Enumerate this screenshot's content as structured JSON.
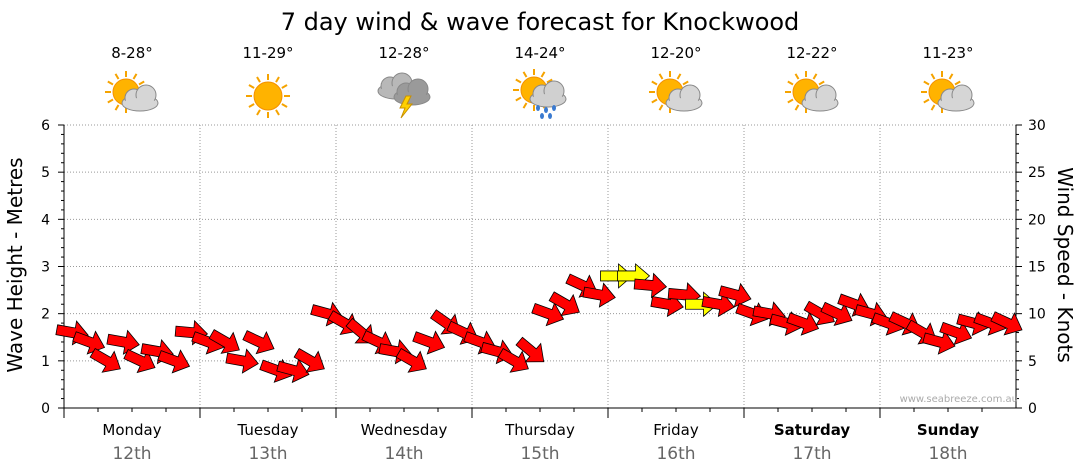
{
  "title": "7 day wind & wave forecast for Knockwood",
  "watermark": "www.seabreeze.com.au",
  "days": [
    {
      "name": "Monday",
      "date": "12th",
      "temp": "8-28°",
      "icon": "partly-cloudy-icon",
      "bold": false
    },
    {
      "name": "Tuesday",
      "date": "13th",
      "temp": "11-29°",
      "icon": "sunny-icon",
      "bold": false
    },
    {
      "name": "Wednesday",
      "date": "14th",
      "temp": "12-28°",
      "icon": "thunderstorm-icon",
      "bold": false
    },
    {
      "name": "Thursday",
      "date": "15th",
      "temp": "14-24°",
      "icon": "sun-showers-icon",
      "bold": false
    },
    {
      "name": "Friday",
      "date": "16th",
      "temp": "12-20°",
      "icon": "partly-cloudy-icon",
      "bold": false
    },
    {
      "name": "Saturday",
      "date": "17th",
      "temp": "12-22°",
      "icon": "partly-cloudy-icon",
      "bold": true
    },
    {
      "name": "Sunday",
      "date": "18th",
      "temp": "11-23°",
      "icon": "partly-cloudy-icon",
      "bold": true
    }
  ],
  "colors": {
    "strong_wind": "#ff0000",
    "moderate_wind": "#ffff00",
    "grid": "#999999"
  },
  "chart_data": {
    "type": "line",
    "title": "7 day wind & wave forecast for Knockwood",
    "ylabel_left": "Wave Height - Metres",
    "ylabel_right": "Wind Speed - Knots",
    "ylim_left": [
      0,
      6
    ],
    "ylim_right": [
      0,
      30
    ],
    "yticks_left": [
      "0",
      "1",
      "2",
      "3",
      "4",
      "5",
      "6"
    ],
    "yticks_right": [
      "0",
      "5",
      "10",
      "15",
      "20",
      "25",
      "30"
    ],
    "x_days": 7,
    "grid": true,
    "series": [
      {
        "axis": "right",
        "note": "wind speed in knots, 8 readings per day (3-hourly), arrows show direction",
        "values": [
          8,
          7,
          5,
          7,
          5,
          6,
          5,
          8,
          7,
          7,
          5,
          7,
          4,
          4,
          5,
          10,
          9,
          8,
          7,
          6,
          5,
          7,
          9,
          8,
          7,
          6,
          5,
          6,
          10,
          11,
          13,
          12,
          14,
          14,
          13,
          11,
          12,
          11,
          11,
          12,
          10,
          10,
          9,
          9,
          10,
          10,
          11,
          10,
          9,
          9,
          8,
          7,
          8,
          9,
          9,
          9
        ],
        "color_state": [
          "r",
          "r",
          "r",
          "r",
          "r",
          "r",
          "r",
          "r",
          "r",
          "r",
          "r",
          "r",
          "r",
          "r",
          "r",
          "r",
          "r",
          "r",
          "r",
          "r",
          "r",
          "r",
          "r",
          "r",
          "r",
          "r",
          "r",
          "r",
          "r",
          "r",
          "r",
          "r",
          "y",
          "y",
          "r",
          "r",
          "r",
          "y",
          "r",
          "r",
          "r",
          "r",
          "r",
          "r",
          "r",
          "r",
          "r",
          "r",
          "r",
          "r",
          "r",
          "r",
          "r",
          "r",
          "r",
          "r"
        ],
        "direction_deg": [
          100,
          110,
          120,
          100,
          115,
          100,
          110,
          95,
          110,
          120,
          100,
          115,
          110,
          105,
          120,
          105,
          120,
          130,
          115,
          100,
          120,
          110,
          125,
          115,
          110,
          105,
          120,
          130,
          110,
          120,
          115,
          100,
          90,
          90,
          95,
          100,
          95,
          90,
          100,
          105,
          110,
          100,
          105,
          110,
          120,
          115,
          110,
          105,
          110,
          115,
          120,
          105,
          110,
          105,
          110,
          115
        ],
        "bar_mark": "arrow"
      }
    ]
  }
}
